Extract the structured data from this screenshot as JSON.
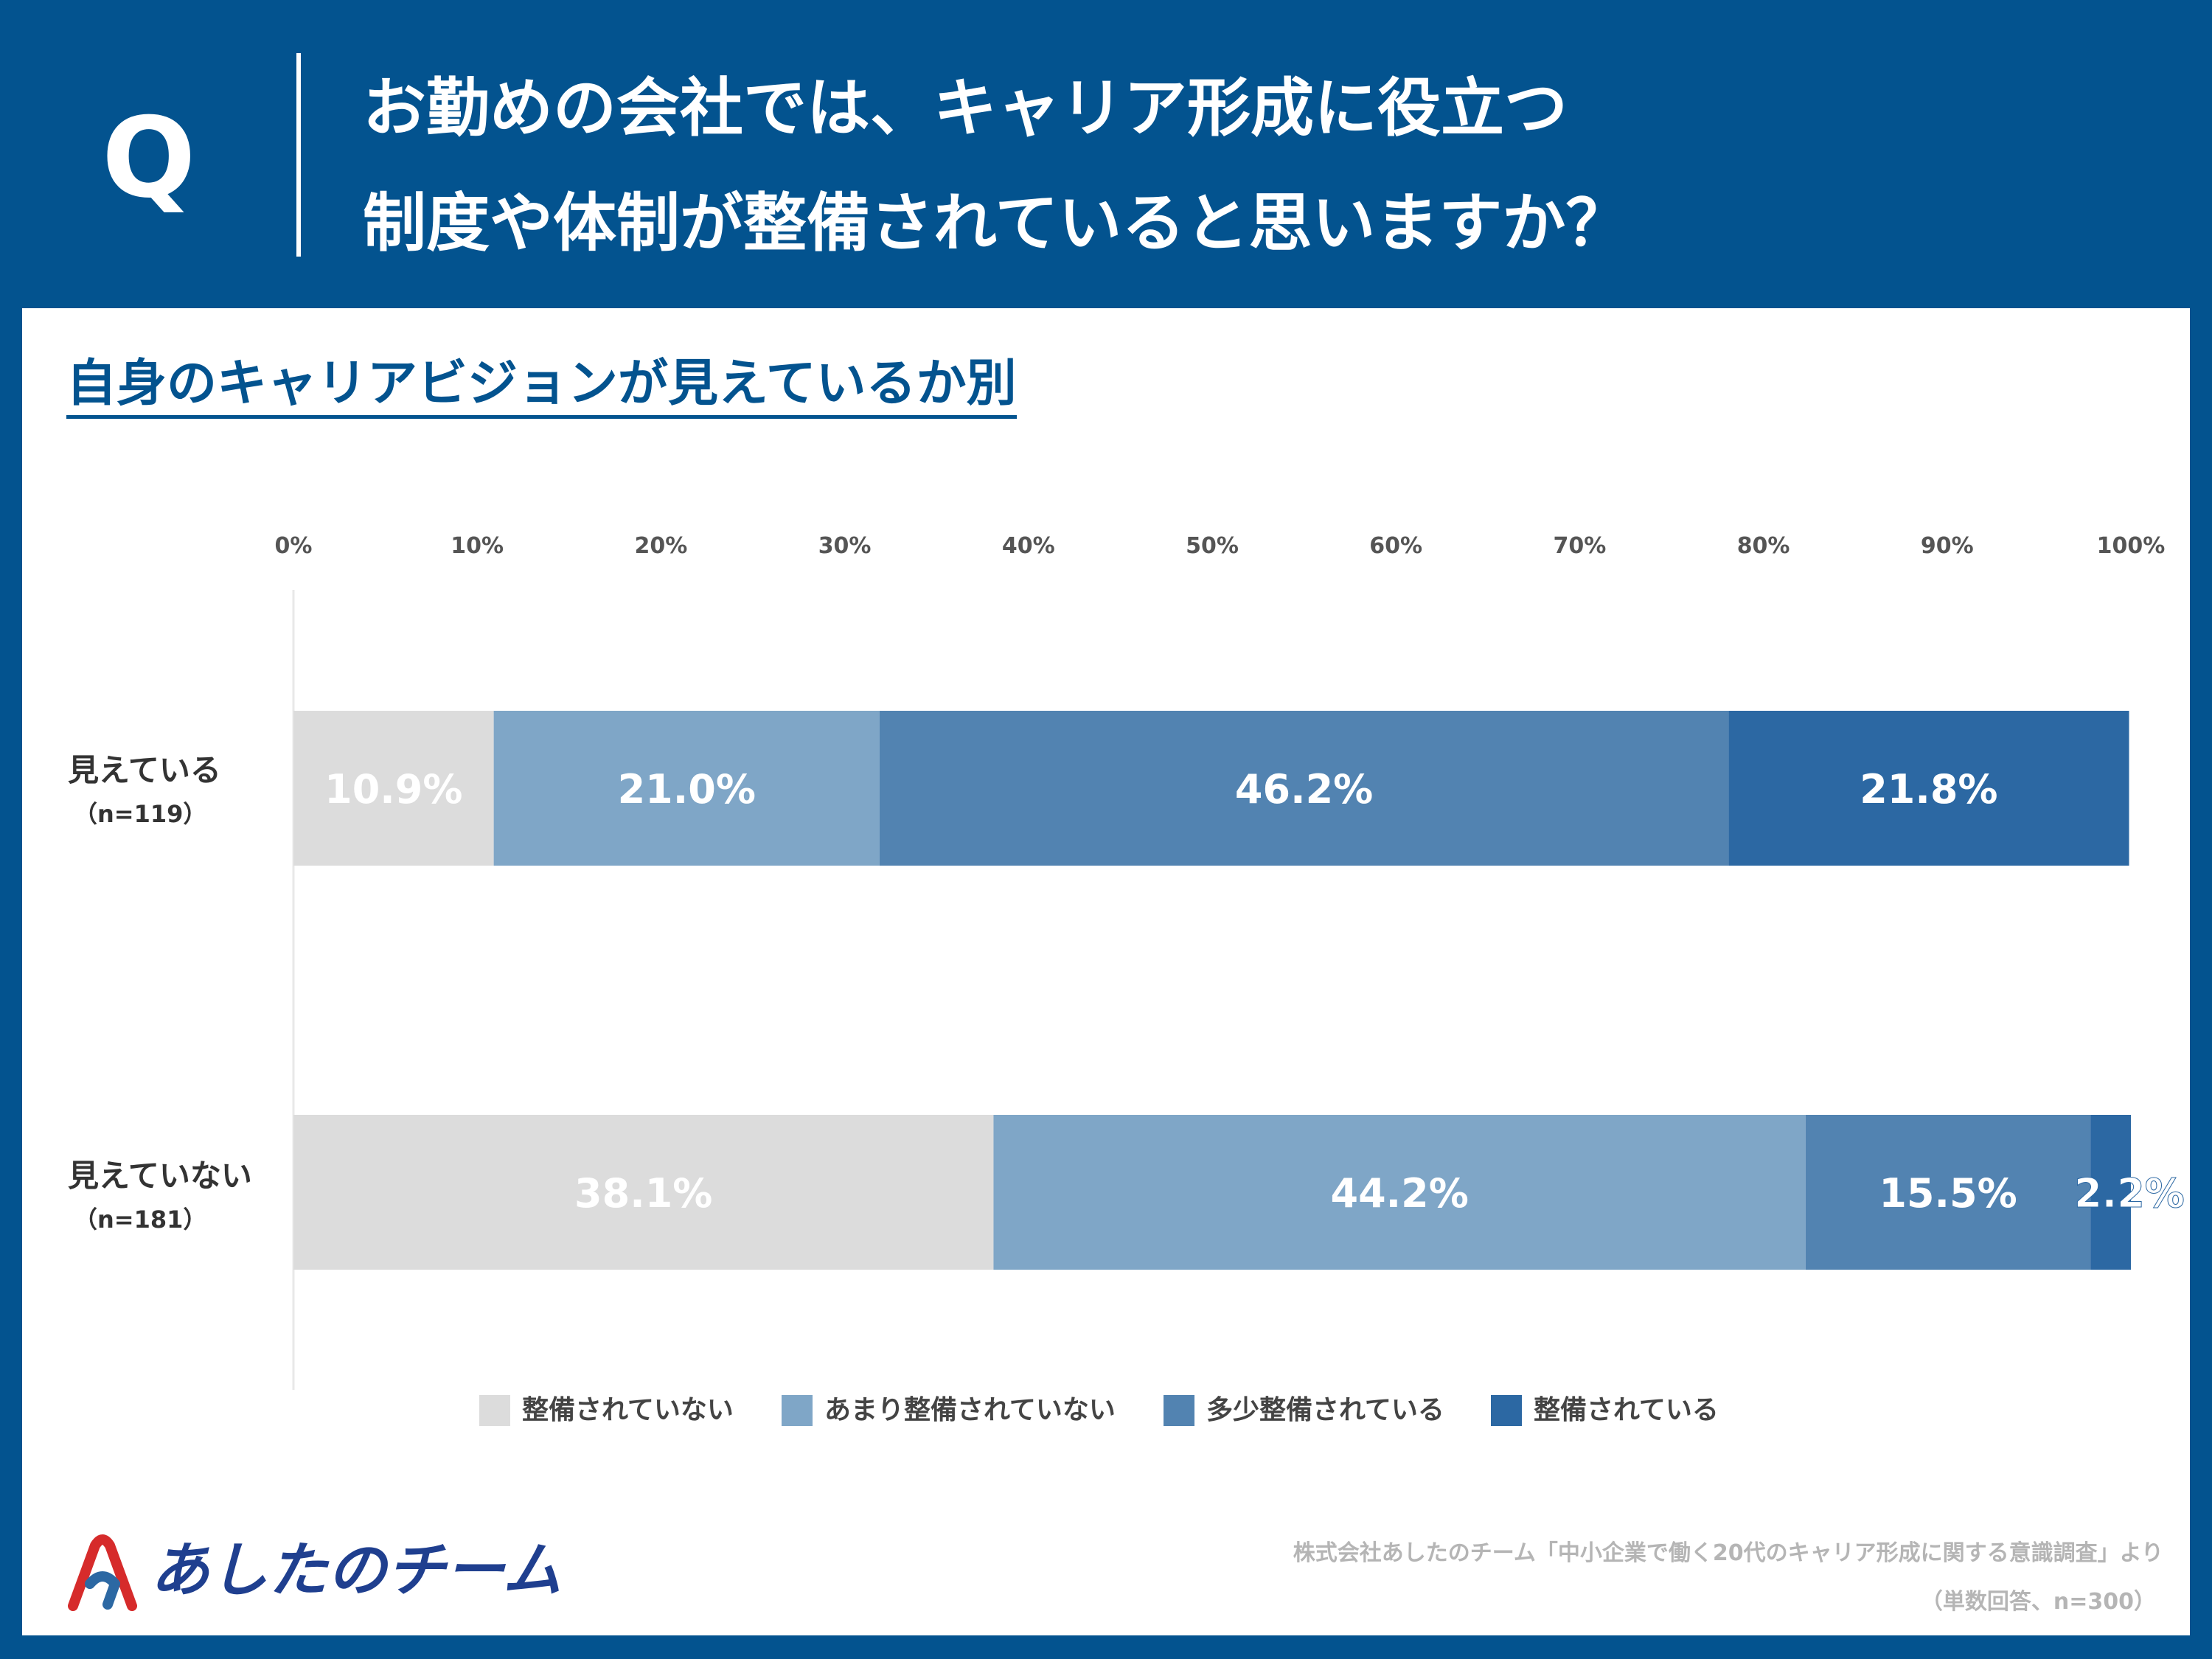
{
  "header": {
    "q_letter": "Q",
    "question_line1": "お勤めの会社では、キャリア形成に役立つ",
    "question_line2": "制度や体制が整備されていると思いますか？"
  },
  "subtitle": "自身のキャリアビジョンが見えているか別",
  "colors": {
    "frame": "#03538f",
    "not_at_all": "#dcdcdc",
    "not_much": "#7fa6c7",
    "somewhat": "#5283b1",
    "fully": "#2c68a3"
  },
  "chart_data": {
    "type": "bar",
    "orientation": "horizontal",
    "stacked": true,
    "percent": true,
    "xlim": [
      0,
      100
    ],
    "x_ticks": [
      "0%",
      "10%",
      "20%",
      "30%",
      "40%",
      "50%",
      "60%",
      "70%",
      "80%",
      "90%",
      "100%"
    ],
    "categories": [
      "見えている",
      "見えていない"
    ],
    "category_n": [
      "（n=119）",
      "（n=181）"
    ],
    "series": [
      {
        "name": "整備されていない",
        "values": [
          10.9,
          38.1
        ],
        "labels": [
          "10.9%",
          "38.1%"
        ]
      },
      {
        "name": "あまり整備されていない",
        "values": [
          21.0,
          44.2
        ],
        "labels": [
          "21.0%",
          "44.2%"
        ]
      },
      {
        "name": "多少整備されている",
        "values": [
          46.2,
          15.5
        ],
        "labels": [
          "46.2%",
          "15.5%"
        ]
      },
      {
        "name": "整備されている",
        "values": [
          21.8,
          2.2
        ],
        "labels": [
          "21.8%",
          "2.2%"
        ]
      }
    ],
    "legend_position": "bottom"
  },
  "logo": {
    "text": "あしたのチーム"
  },
  "footer": {
    "source": "株式会社あしたのチーム「中小企業で働く20代のキャリア形成に関する意識調査」より",
    "sample": "（単数回答、n=300）"
  }
}
